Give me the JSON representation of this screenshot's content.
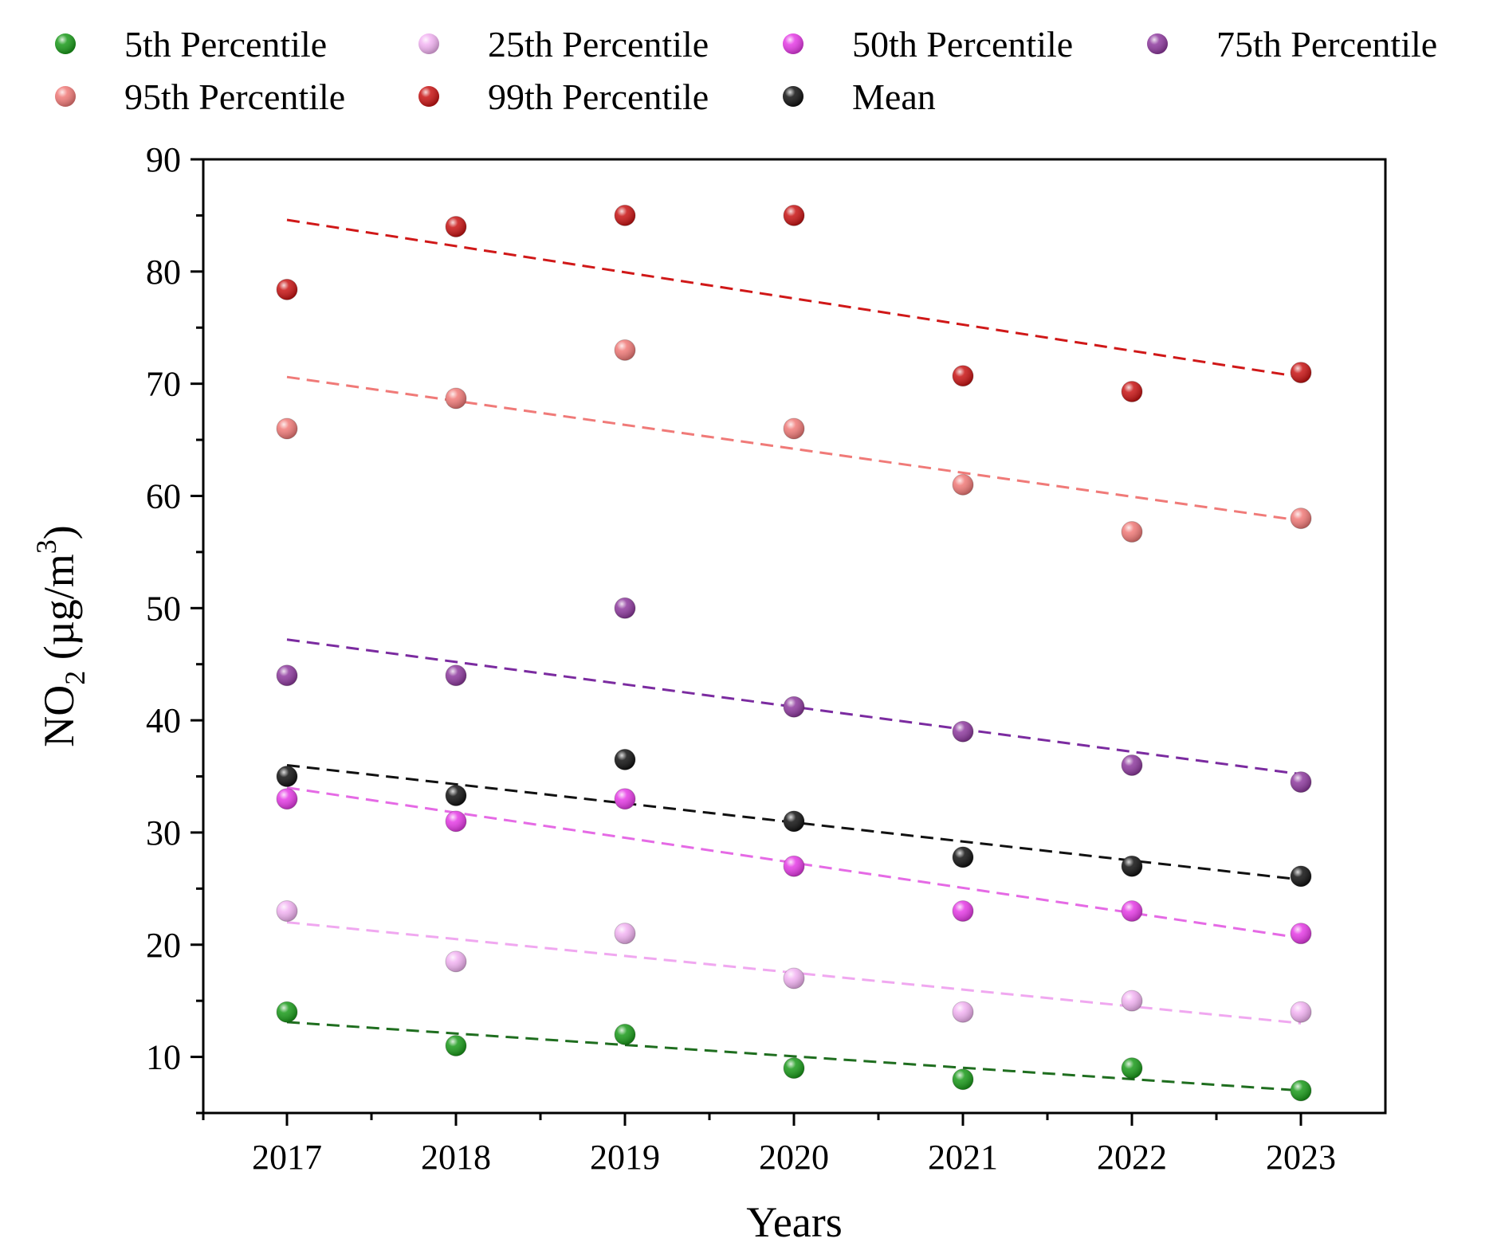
{
  "chart_data": {
    "type": "scatter",
    "title": "",
    "xlabel": "Years",
    "ylabel": {
      "main": "NO",
      "sub": "2",
      "unit_open": " (µg/m",
      "sup": "3",
      "unit_close": ")"
    },
    "categories": [
      "2017",
      "2018",
      "2019",
      "2020",
      "2021",
      "2022",
      "2023"
    ],
    "ylim": [
      5,
      90
    ],
    "yticks": [
      "10",
      "20",
      "30",
      "40",
      "50",
      "60",
      "70",
      "80",
      "90"
    ],
    "grid": false,
    "legend_position": "top",
    "series": [
      {
        "name": "5th Percentile",
        "color": "#1a9a1a",
        "line_color": "#1f6e1f",
        "values": [
          14,
          11,
          12,
          9,
          8,
          9,
          7
        ],
        "trend": [
          13.1,
          7.0
        ]
      },
      {
        "name": "25th Percentile",
        "color": "#f2b3f2",
        "line_color": "#f0a8f0",
        "values": [
          23,
          18.5,
          21,
          17,
          14,
          15,
          14
        ],
        "trend": [
          22.0,
          13.0
        ]
      },
      {
        "name": "50th Percentile",
        "color": "#e53be5",
        "line_color": "#e56ae5",
        "values": [
          33,
          31,
          33,
          27,
          23,
          23,
          21
        ],
        "trend": [
          34.0,
          20.6
        ]
      },
      {
        "name": "75th Percentile",
        "color": "#8e3a9e",
        "line_color": "#7b2ba0",
        "values": [
          44,
          44,
          50,
          41.2,
          39,
          36,
          34.5
        ],
        "trend": [
          47.2,
          35.2
        ]
      },
      {
        "name": "95th Percentile",
        "color": "#f07a78",
        "line_color": "#f07a78",
        "values": [
          66,
          68.7,
          73,
          66,
          61,
          56.8,
          58
        ],
        "trend": [
          70.6,
          57.8
        ]
      },
      {
        "name": "99th Percentile",
        "color": "#c81414",
        "line_color": "#d01818",
        "values": [
          78.4,
          84,
          85,
          85,
          70.7,
          69.3,
          71
        ],
        "trend": [
          84.6,
          70.6
        ]
      },
      {
        "name": "Mean",
        "color": "#111111",
        "line_color": "#111111",
        "values": [
          35,
          33.3,
          36.5,
          31,
          27.8,
          27,
          26.1
        ],
        "trend": [
          36.0,
          25.8
        ]
      }
    ]
  }
}
